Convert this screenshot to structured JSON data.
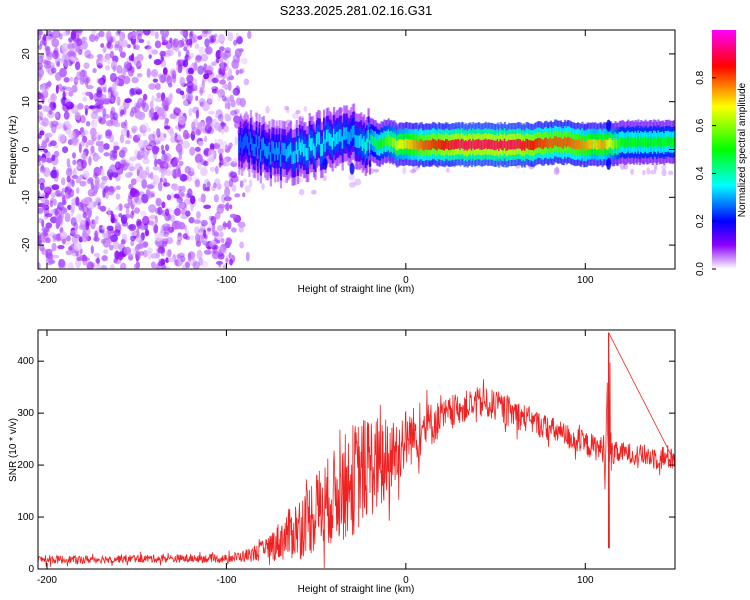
{
  "title": "S233.2025.281.02.16.G31",
  "chart_data": [
    {
      "type": "heatmap",
      "name": "spectrogram",
      "title": "S233.2025.281.02.16.G31",
      "xlabel": "Height of straight line (km)",
      "ylabel": "Frequency (Hz)",
      "xlim": [
        -205,
        150
      ],
      "ylim": [
        -25,
        25
      ],
      "xticks": [
        -200,
        -100,
        0,
        100
      ],
      "yticks": [
        -20,
        -10,
        0,
        10,
        20
      ],
      "colorbar": {
        "label": "Normalized spectral amplitude",
        "range": [
          0,
          1
        ],
        "ticks": [
          "0.0",
          "0.2",
          "0.4",
          "0.6",
          "0.8"
        ],
        "stops": [
          "#ffffff",
          "#8b00ff",
          "#0000ff",
          "#00ffff",
          "#00ff00",
          "#ffff00",
          "#ff0000",
          "#ff00ff"
        ]
      },
      "ridge": {
        "description_free": true,
        "x": [
          -93,
          -80,
          -70,
          -60,
          -50,
          -40,
          -30,
          -25,
          -20,
          -15,
          -10,
          -5,
          0,
          10,
          20,
          30,
          40,
          50,
          60,
          70,
          80,
          90,
          100,
          105,
          110,
          120,
          130,
          140,
          150
        ],
        "f": [
          2,
          0,
          -1,
          0,
          1,
          2,
          3,
          1.5,
          2,
          1,
          2,
          1,
          1,
          1,
          1,
          1,
          1,
          1,
          1,
          1,
          1.5,
          1.5,
          1,
          1,
          1,
          1.5,
          1.5,
          1.5,
          1.5
        ],
        "amplitude": [
          0.25,
          0.3,
          0.3,
          0.35,
          0.35,
          0.35,
          0.3,
          0.35,
          0.4,
          0.5,
          0.55,
          0.65,
          0.7,
          0.8,
          0.85,
          0.9,
          0.9,
          0.9,
          0.9,
          0.85,
          0.8,
          0.8,
          0.75,
          0.7,
          0.75,
          0.5,
          0.5,
          0.5,
          0.5
        ]
      }
    },
    {
      "type": "line",
      "name": "snr",
      "xlabel": "Height of straight line (km)",
      "ylabel": "SNR (10 * v/v)",
      "xlim": [
        -205,
        150
      ],
      "ylim": [
        0,
        460
      ],
      "xticks": [
        -200,
        -100,
        0,
        100
      ],
      "yticks": [
        0,
        100,
        200,
        300,
        400
      ],
      "color": "#ee2222",
      "series": [
        {
          "name": "SNR",
          "x": [
            -205,
            -190,
            -180,
            -160,
            -140,
            -120,
            -100,
            -90,
            -80,
            -70,
            -60,
            -50,
            -40,
            -30,
            -20,
            -10,
            -5,
            0,
            10,
            20,
            30,
            40,
            50,
            60,
            70,
            80,
            90,
            100,
            110,
            113,
            115,
            120,
            130,
            140,
            150
          ],
          "mean": [
            18,
            18,
            18,
            20,
            20,
            20,
            20,
            25,
            35,
            55,
            80,
            110,
            140,
            170,
            200,
            200,
            230,
            250,
            270,
            290,
            310,
            320,
            315,
            300,
            285,
            270,
            255,
            240,
            230,
            260,
            220,
            225,
            220,
            215,
            215
          ],
          "spread": [
            8,
            8,
            8,
            8,
            8,
            8,
            8,
            12,
            20,
            40,
            60,
            80,
            90,
            110,
            100,
            90,
            70,
            60,
            50,
            35,
            30,
            30,
            30,
            30,
            25,
            25,
            25,
            25,
            25,
            150,
            25,
            20,
            20,
            25,
            25
          ]
        }
      ],
      "spike": {
        "x": 113,
        "max": 455,
        "min": 40
      }
    }
  ]
}
